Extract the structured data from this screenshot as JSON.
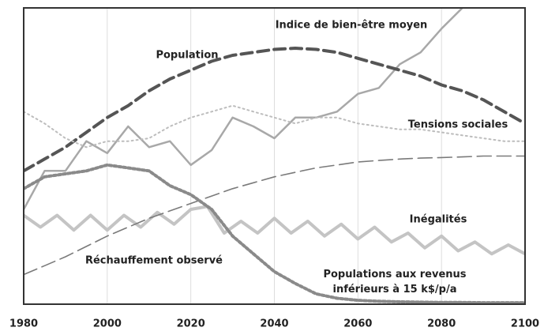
{
  "chart_data": {
    "type": "line",
    "xlim": [
      1980,
      2100
    ],
    "xticks": [
      1980,
      2000,
      2020,
      2040,
      2060,
      2080,
      2100
    ],
    "ylim": [
      0,
      100
    ],
    "grid": true,
    "x": [
      1980,
      1985,
      1990,
      1995,
      2000,
      2005,
      2010,
      2015,
      2020,
      2025,
      2030,
      2035,
      2040,
      2045,
      2050,
      2055,
      2060,
      2065,
      2070,
      2075,
      2080,
      2085,
      2090,
      2095,
      2100
    ],
    "series": [
      {
        "name": "Indice de bien-être moyen",
        "color": "#a8a8a8",
        "values": [
          32,
          45,
          45,
          55,
          51,
          60,
          53,
          55,
          47,
          52,
          63,
          60,
          56,
          63,
          63,
          65,
          71,
          73,
          81,
          85,
          93,
          100,
          null,
          null,
          null
        ]
      },
      {
        "name": "Population",
        "color": "#555555",
        "values": [
          45,
          49,
          53,
          58,
          63,
          67,
          72,
          76,
          79,
          82,
          84,
          85,
          86,
          86.4,
          86,
          85,
          83,
          81,
          79,
          77,
          74,
          72,
          69,
          65,
          61
        ]
      },
      {
        "name": "Tensions sociales",
        "color": "#bdbdbd",
        "values": [
          65,
          61,
          56,
          53,
          55,
          55,
          56,
          60,
          63,
          65,
          67,
          65,
          63,
          61,
          63,
          63,
          61,
          60,
          59,
          59,
          58,
          57,
          56,
          55,
          55
        ]
      },
      {
        "name": "Inégalités",
        "color": "#c4c4c4",
        "x": [
          1980,
          1984,
          1988,
          1992,
          1996,
          2000,
          2004,
          2008,
          2012,
          2016,
          2020,
          2024,
          2028,
          2032,
          2036,
          2040,
          2044,
          2048,
          2052,
          2056,
          2060,
          2064,
          2068,
          2072,
          2076,
          2080,
          2084,
          2088,
          2092,
          2096,
          2100
        ],
        "values": [
          30,
          26,
          30,
          25,
          30,
          25,
          30,
          26,
          31,
          27,
          32,
          33,
          24,
          28,
          24,
          29,
          24,
          28,
          23,
          27,
          22,
          26,
          21,
          24,
          19,
          23,
          18,
          21,
          17,
          20,
          17
        ]
      },
      {
        "name": "Réchauffement observé",
        "color": "#7a7a7a",
        "values": [
          10,
          13,
          16,
          19.5,
          23,
          26,
          29,
          31.5,
          34,
          36.5,
          39,
          41,
          43,
          44.5,
          46,
          47,
          48,
          48.5,
          49,
          49.3,
          49.5,
          49.7,
          50,
          50,
          50
        ]
      },
      {
        "name": "Populations aux revenus inférieurs à 15 k$/p/a",
        "color": "#8a8a8a",
        "values": [
          39,
          43,
          44,
          45,
          47,
          46,
          45,
          40,
          37,
          32,
          23,
          17,
          11,
          7,
          3.5,
          2,
          1.3,
          1,
          0.8,
          0.7,
          0.6,
          0.6,
          0.5,
          0.5,
          0.5
        ]
      }
    ]
  }
}
